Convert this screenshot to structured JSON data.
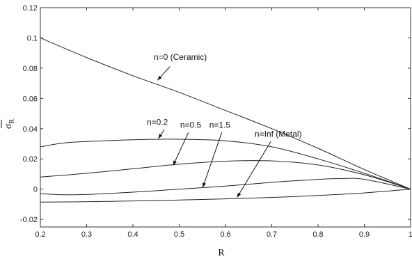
{
  "chart_data": {
    "type": "line",
    "title": "",
    "xlabel": "R",
    "ylabel": "σ",
    "ylabel_subscript": "R",
    "xlim": [
      0.2,
      1.0
    ],
    "ylim": [
      -0.025,
      0.12
    ],
    "xticks": [
      0.2,
      0.3,
      0.4,
      0.5,
      0.6,
      0.7,
      0.8,
      0.9,
      1
    ],
    "xtick_labels": [
      "0.2",
      "0.3",
      "0.4",
      "0.5",
      "0.6",
      "0.7",
      "0.8",
      "0.9",
      "1"
    ],
    "yticks": [
      -0.02,
      0,
      0.02,
      0.04,
      0.06,
      0.08,
      0.1,
      0.12
    ],
    "ytick_labels": [
      "-0.02",
      "0",
      "0.02",
      "0.04",
      "0.06",
      "0.08",
      "0.1",
      "0.12"
    ],
    "grid": false,
    "legend": "none",
    "series": [
      {
        "x": [
          0.2,
          0.3,
          0.4,
          0.5,
          0.6,
          0.7,
          0.8,
          0.9,
          1.0
        ],
        "y": [
          0.1,
          0.087,
          0.075,
          0.064,
          0.052,
          0.04,
          0.027,
          0.013,
          0.0
        ]
      },
      {
        "x": [
          0.2,
          0.25,
          0.3,
          0.4,
          0.5,
          0.6,
          0.7,
          0.8,
          0.9,
          1.0
        ],
        "y": [
          0.028,
          0.0305,
          0.0315,
          0.0327,
          0.033,
          0.032,
          0.028,
          0.02,
          0.0105,
          0.0
        ]
      },
      {
        "x": [
          0.2,
          0.3,
          0.4,
          0.5,
          0.6,
          0.7,
          0.8,
          0.9,
          1.0
        ],
        "y": [
          0.008,
          0.0105,
          0.0135,
          0.0165,
          0.0185,
          0.0187,
          0.016,
          0.0095,
          0.0
        ]
      },
      {
        "x": [
          0.2,
          0.25,
          0.3,
          0.4,
          0.5,
          0.6,
          0.7,
          0.8,
          0.85,
          0.9,
          1.0
        ],
        "y": [
          -0.003,
          -0.0037,
          -0.0035,
          -0.002,
          0.0,
          0.002,
          0.0045,
          0.0065,
          0.007,
          0.0065,
          0.0
        ]
      },
      {
        "x": [
          0.2,
          0.3,
          0.4,
          0.5,
          0.6,
          0.7,
          0.8,
          0.9,
          1.0
        ],
        "y": [
          -0.0085,
          -0.0083,
          -0.0078,
          -0.0072,
          -0.0064,
          -0.0055,
          -0.0042,
          -0.0025,
          0.0
        ]
      }
    ],
    "annotations": [
      {
        "text": "n=0 (Ceramic)",
        "text_x": 0.445,
        "text_y": 0.0855,
        "arrow_from": [
          0.48,
          0.081
        ],
        "arrow_to": [
          0.453,
          0.072
        ]
      },
      {
        "text": "n=0.2",
        "text_x": 0.43,
        "text_y": 0.0425,
        "arrow_from": [
          0.468,
          0.0395
        ],
        "arrow_to": [
          0.455,
          0.0335
        ]
      },
      {
        "text": "n=0.5",
        "text_x": 0.502,
        "text_y": 0.0405,
        "arrow_from": [
          0.52,
          0.0375
        ],
        "arrow_to": [
          0.487,
          0.0158
        ]
      },
      {
        "text": "n=1.5",
        "text_x": 0.565,
        "text_y": 0.0405,
        "arrow_from": [
          0.592,
          0.0375
        ],
        "arrow_to": [
          0.551,
          0.0012
        ]
      },
      {
        "text": "n=Inf (Metal)",
        "text_x": 0.663,
        "text_y": 0.0345,
        "arrow_from": [
          0.698,
          0.0315
        ],
        "arrow_to": [
          0.625,
          -0.0055
        ]
      }
    ]
  }
}
